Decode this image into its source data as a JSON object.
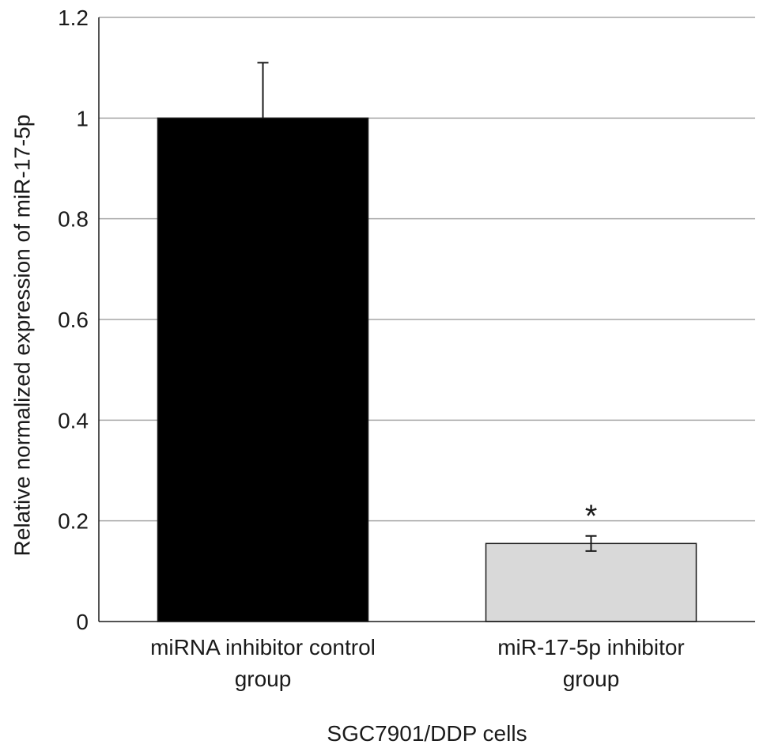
{
  "chart_data": {
    "type": "bar",
    "title": "",
    "xlabel": "SGC7901/DDP cells",
    "ylabel": "Relative normalized expression of miR-17-5p",
    "ylim": [
      0,
      1.2
    ],
    "yticks": [
      "0",
      "0.2",
      "0.4",
      "0.6",
      "0.8",
      "1",
      "1.2"
    ],
    "grid": true,
    "legend": "none",
    "categories": [
      {
        "lines": [
          "miRNA inhibitor control",
          "group"
        ]
      },
      {
        "lines": [
          "miR-17-5p inhibitor",
          "group"
        ]
      }
    ],
    "values": [
      1.0,
      0.155
    ],
    "errors": [
      0.11,
      0.015
    ],
    "colors": [
      "#000000",
      "#d9d9d9"
    ],
    "annotations": [
      "",
      "*"
    ]
  }
}
